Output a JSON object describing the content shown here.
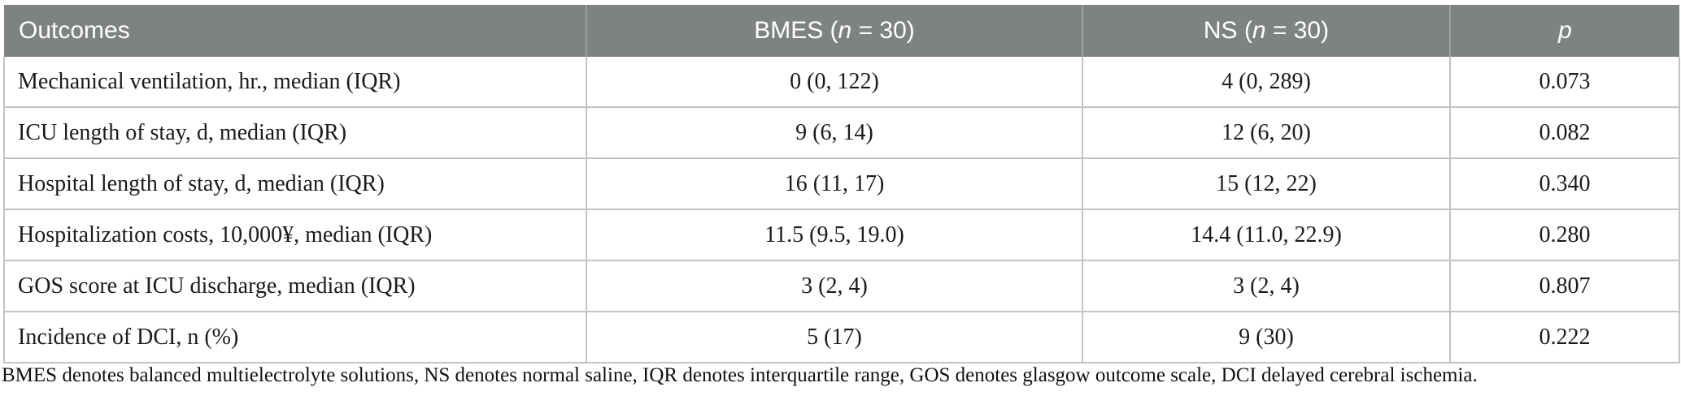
{
  "colors": {
    "header_bg": "#7f8282",
    "header_text": "#ffffff",
    "body_border": "#c3c3c3",
    "header_divider": "#9aa0a0",
    "body_text": "#1b1b1b"
  },
  "table": {
    "header": [
      {
        "pre": "Outcomes",
        "it": "",
        "post": ""
      },
      {
        "pre": "BMES (",
        "it": "n",
        "post": " = 30)"
      },
      {
        "pre": "NS (",
        "it": "n",
        "post": " = 30)"
      },
      {
        "pre": "",
        "it": "p",
        "post": ""
      }
    ],
    "rows": [
      {
        "label": "Mechanical ventilation, hr., median (IQR)",
        "bmes": "0 (0, 122)",
        "ns": "4 (0, 289)",
        "p": "0.073"
      },
      {
        "label": "ICU length of stay, d, median (IQR)",
        "bmes": "9 (6, 14)",
        "ns": "12 (6, 20)",
        "p": "0.082"
      },
      {
        "label": "Hospital length of stay, d, median (IQR)",
        "bmes": "16 (11, 17)",
        "ns": "15 (12, 22)",
        "p": "0.340"
      },
      {
        "label": "Hospitalization costs, 10,000¥, median (IQR)",
        "bmes": "11.5 (9.5, 19.0)",
        "ns": "14.4 (11.0, 22.9)",
        "p": "0.280"
      },
      {
        "label": "GOS score at ICU discharge, median (IQR)",
        "bmes": "3 (2, 4)",
        "ns": "3 (2, 4)",
        "p": "0.807"
      },
      {
        "label": "Incidence of DCI, n (%)",
        "bmes": "5 (17)",
        "ns": "9 (30)",
        "p": "0.222"
      }
    ]
  },
  "footnote": "BMES denotes balanced multielectrolyte solutions, NS denotes normal saline, IQR denotes interquartile range, GOS denotes glasgow outcome scale, DCI delayed cerebral ischemia."
}
